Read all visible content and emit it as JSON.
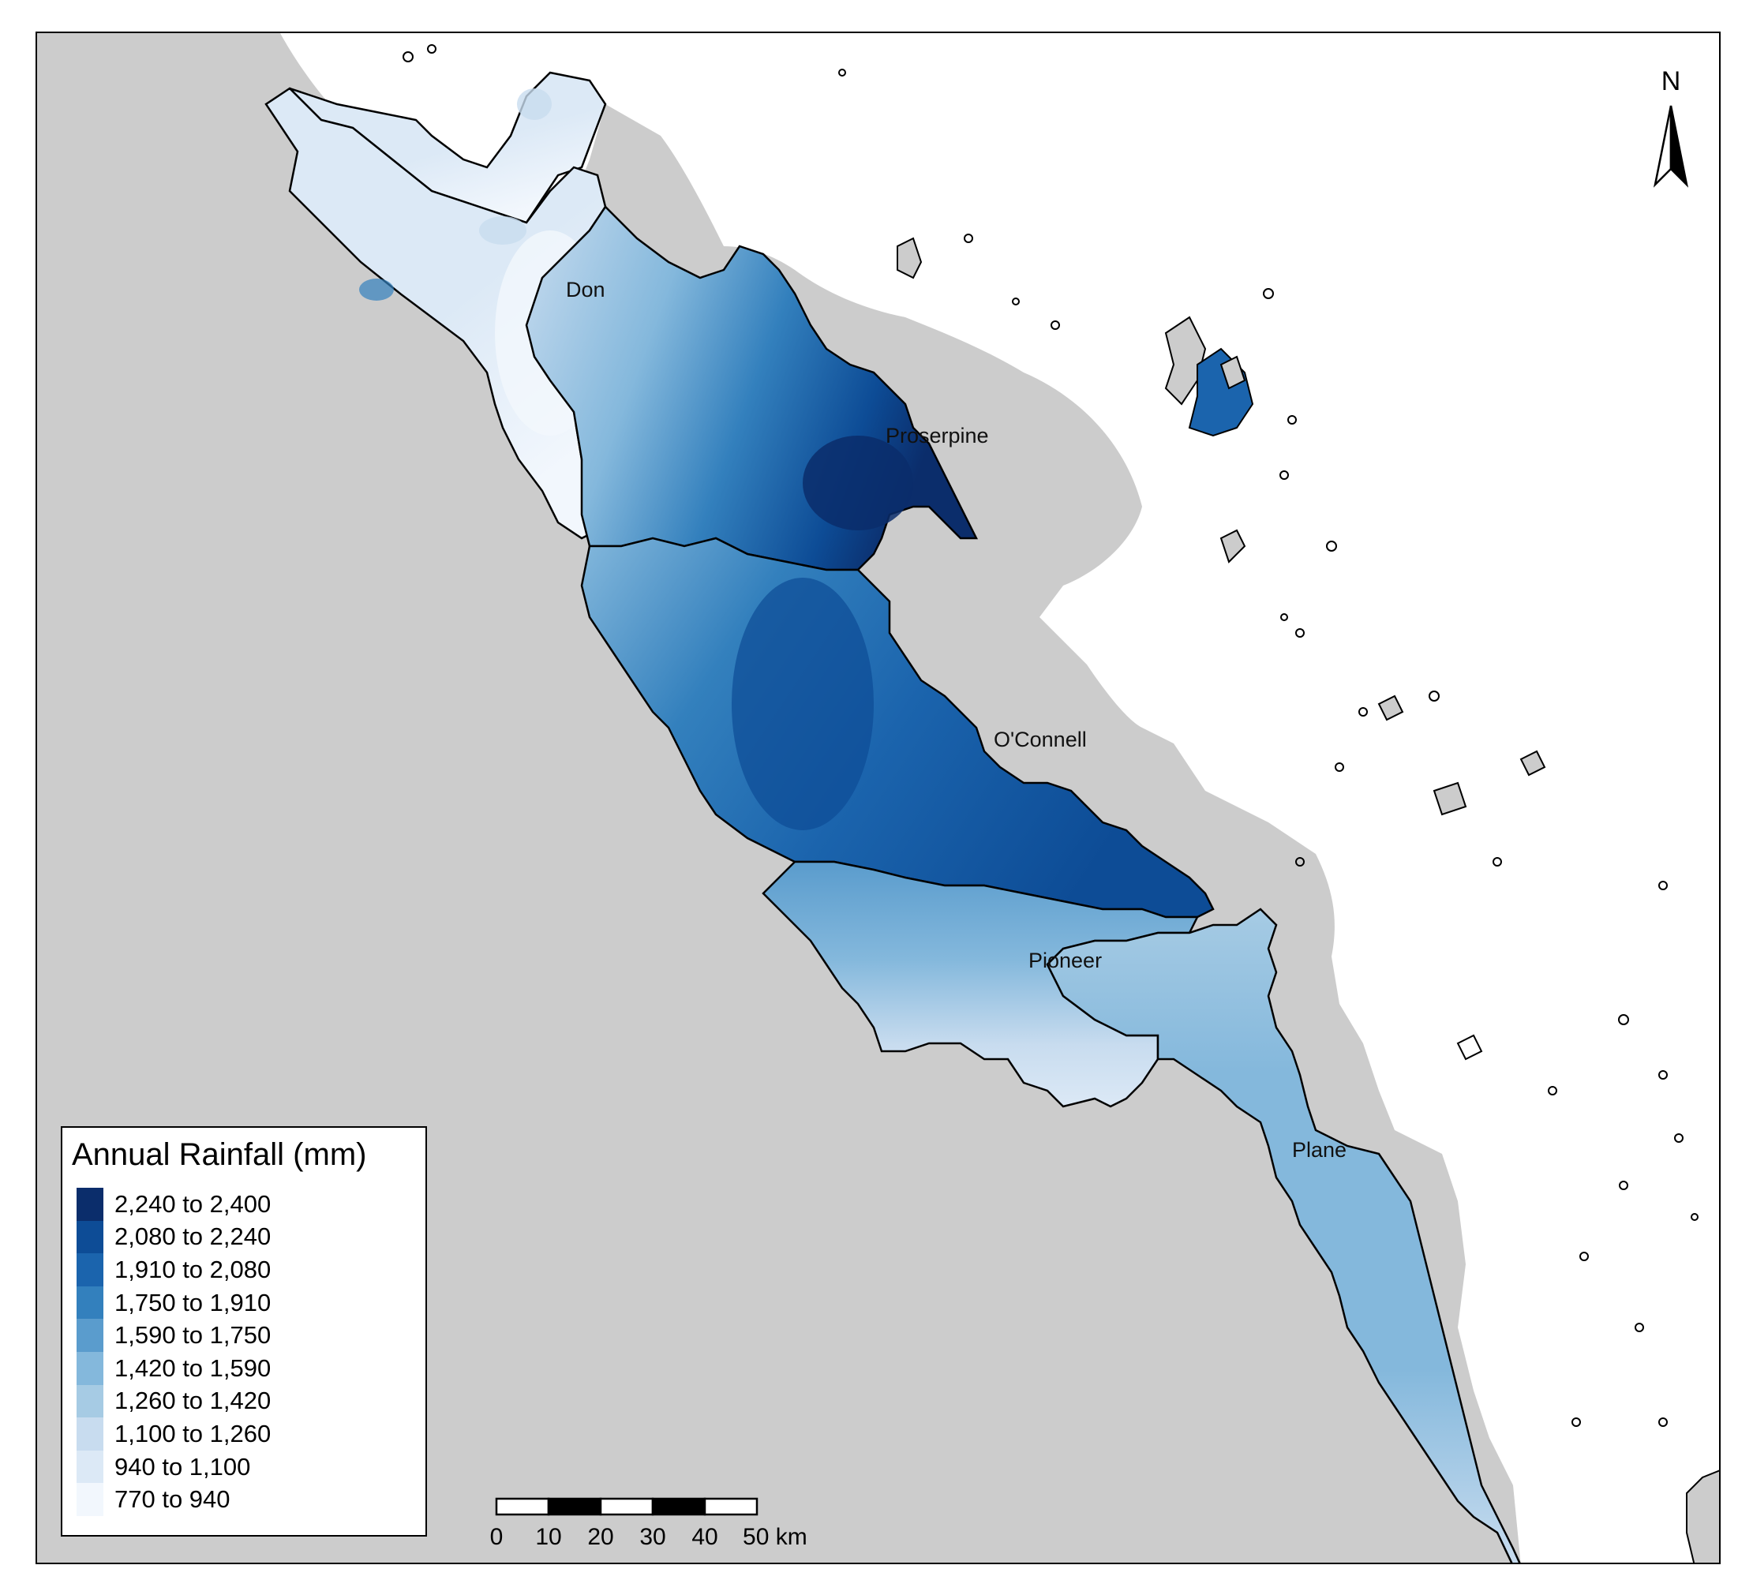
{
  "map": {
    "catchments": [
      {
        "name": "Don"
      },
      {
        "name": "Proserpine"
      },
      {
        "name": "O'Connell"
      },
      {
        "name": "Pioneer"
      },
      {
        "name": "Plane"
      }
    ],
    "colors": {
      "land_outside": "#cccccc",
      "sea": "#ffffff",
      "boundary": "#000000"
    }
  },
  "north_arrow": {
    "label": "N"
  },
  "legend": {
    "title": "Annual Rainfall (mm)",
    "items": [
      {
        "label": "2,240 to 2,400",
        "color": "#0b2d6b"
      },
      {
        "label": "2,080 to 2,240",
        "color": "#0d4c96"
      },
      {
        "label": "1,910 to 2,080",
        "color": "#1b64ad"
      },
      {
        "label": "1,750 to 1,910",
        "color": "#3380bd"
      },
      {
        "label": "1,590 to 1,750",
        "color": "#5a9ccd"
      },
      {
        "label": "1,420 to 1,590",
        "color": "#84b8dc"
      },
      {
        "label": "1,260 to 1,420",
        "color": "#a6cbe4"
      },
      {
        "label": "1,100 to 1,260",
        "color": "#c8dcef"
      },
      {
        "label": "940 to 1,100",
        "color": "#dce9f6"
      },
      {
        "label": "770 to 940",
        "color": "#f2f7fd"
      }
    ]
  },
  "scale_bar": {
    "ticks": [
      "0",
      "10",
      "20",
      "30",
      "40",
      "50 km"
    ]
  }
}
